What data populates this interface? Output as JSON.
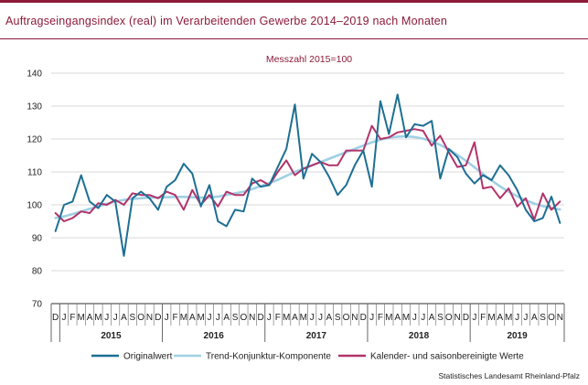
{
  "title": "Auftragseingangsindex (real) im Verarbeitenden Gewerbe 2014–2019 nach Monaten",
  "source": "Statistisches Landesamt Rheinland-Pfalz",
  "chart_data": {
    "type": "line",
    "subtitle": "Messzahl 2015=100",
    "ylim": [
      70,
      140
    ],
    "yticks": [
      70,
      80,
      90,
      100,
      110,
      120,
      130,
      140
    ],
    "grid": "horizontal",
    "legend_position": "bottom",
    "x": [
      "D",
      "J",
      "F",
      "M",
      "A",
      "M",
      "J",
      "J",
      "A",
      "S",
      "O",
      "N",
      "D",
      "J",
      "F",
      "M",
      "A",
      "M",
      "J",
      "J",
      "A",
      "S",
      "O",
      "N",
      "D",
      "J",
      "F",
      "M",
      "A",
      "M",
      "J",
      "J",
      "A",
      "S",
      "O",
      "N",
      "D",
      "J",
      "F",
      "M",
      "A",
      "M",
      "J",
      "J",
      "A",
      "S",
      "O",
      "N",
      "D",
      "J",
      "F",
      "M",
      "A",
      "M",
      "J",
      "J",
      "A",
      "S",
      "O",
      "N"
    ],
    "year_groups": [
      {
        "label": "2015",
        "start": 1,
        "end": 12
      },
      {
        "label": "2016",
        "start": 13,
        "end": 24
      },
      {
        "label": "2017",
        "start": 25,
        "end": 36
      },
      {
        "label": "2018",
        "start": 37,
        "end": 48
      },
      {
        "label": "2019",
        "start": 49,
        "end": 59
      }
    ],
    "series": [
      {
        "name": "Originalwert",
        "color": "#1d6f93",
        "values": [
          92,
          100,
          101,
          109,
          101,
          99,
          103,
          101,
          84.5,
          102,
          104,
          102,
          98.5,
          105.5,
          107.5,
          112.5,
          109.5,
          99.5,
          106,
          95,
          93.5,
          98.5,
          98,
          108,
          105.5,
          106,
          111.5,
          117,
          130.5,
          108,
          115.5,
          113,
          108.5,
          103,
          106,
          112,
          116.5,
          105.5,
          131.5,
          121.5,
          133.5,
          120.5,
          124.5,
          124,
          125.5,
          108,
          117,
          114.5,
          109.5,
          106.5,
          109,
          107.5,
          112,
          109,
          104.5,
          98.5,
          95,
          96,
          102.5,
          94.5
        ]
      },
      {
        "name": "Trend-Konjunktur-Komponente",
        "color": "#9fd0e4",
        "values": [
          96,
          96.5,
          97.2,
          98,
          98.8,
          99.5,
          100.3,
          101,
          101.5,
          101.8,
          102,
          102.2,
          102.2,
          102.3,
          102.4,
          102.4,
          102.3,
          102.2,
          102.2,
          102.5,
          103,
          103.5,
          104,
          104.8,
          105.7,
          106.6,
          107.6,
          108.8,
          110,
          111,
          112,
          113,
          114,
          115,
          116,
          117,
          118,
          119,
          119.8,
          120.4,
          120.7,
          120.8,
          120.6,
          120.1,
          119.3,
          118.2,
          116.8,
          115.2,
          113.4,
          111.4,
          109.4,
          107.4,
          105.6,
          104,
          102.6,
          101.4,
          100.4,
          99.6,
          99,
          98.6
        ]
      },
      {
        "name": "Kalender- und saisonbereinigte Werte",
        "color": "#b2336b",
        "values": [
          97.5,
          95,
          96,
          98,
          97.5,
          100.5,
          100,
          101.5,
          100,
          103.5,
          103,
          103,
          102,
          104,
          103,
          98.5,
          104.5,
          100,
          103,
          99.5,
          104,
          103,
          103,
          106.5,
          107.5,
          106,
          110,
          113.5,
          109,
          111,
          112,
          113,
          112,
          112,
          116.5,
          116.5,
          116.5,
          124,
          120,
          120.5,
          122,
          122.5,
          123,
          122.5,
          118,
          121,
          116,
          111.5,
          112,
          119,
          105,
          105.5,
          102,
          105,
          99.5,
          102,
          95.5,
          103.5,
          98.5,
          101
        ]
      }
    ]
  }
}
